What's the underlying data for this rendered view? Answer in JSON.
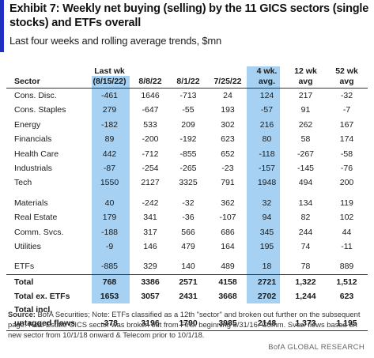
{
  "header": {
    "title": "Exhibit 7: Weekly net buying (selling) by the 11 GICS sectors (single stocks) and ETFs overall",
    "subtitle": "Last four weeks and rolling average trends, $mn"
  },
  "table": {
    "col_top": [
      "",
      "Last wk",
      "",
      "",
      "",
      "4 wk.",
      "12 wk",
      "52 wk"
    ],
    "col_bottom": [
      "Sector",
      "(8/15/22)",
      "8/8/22",
      "8/1/22",
      "7/25/22",
      "avg.",
      "avg",
      "avg"
    ],
    "rows": [
      {
        "sector": "Cons. Disc.",
        "values": [
          "-461",
          "1646",
          "-713",
          "24",
          "124",
          "217",
          "-32"
        ]
      },
      {
        "sector": "Cons. Staples",
        "values": [
          "279",
          "-647",
          "-55",
          "193",
          "-57",
          "91",
          "-7"
        ]
      },
      {
        "sector": "Energy",
        "values": [
          "-182",
          "533",
          "209",
          "302",
          "216",
          "262",
          "167"
        ]
      },
      {
        "sector": "Financials",
        "values": [
          "89",
          "-200",
          "-192",
          "623",
          "80",
          "58",
          "174"
        ]
      },
      {
        "sector": "Health Care",
        "values": [
          "442",
          "-712",
          "-855",
          "652",
          "-118",
          "-267",
          "-58"
        ]
      },
      {
        "sector": "Industrials",
        "values": [
          "-87",
          "-254",
          "-265",
          "-23",
          "-157",
          "-145",
          "-76"
        ]
      },
      {
        "sector": "Tech",
        "values": [
          "1550",
          "2127",
          "3325",
          "791",
          "1948",
          "494",
          "200"
        ]
      },
      {
        "sector": "Materials",
        "values": [
          "40",
          "-242",
          "-32",
          "362",
          "32",
          "134",
          "119"
        ]
      },
      {
        "sector": "Real Estate",
        "values": [
          "179",
          "341",
          "-36",
          "-107",
          "94",
          "82",
          "102"
        ]
      },
      {
        "sector": "Comm. Svcs.",
        "values": [
          "-188",
          "317",
          "566",
          "686",
          "345",
          "244",
          "44"
        ]
      },
      {
        "sector": "Utilities",
        "values": [
          "-9",
          "146",
          "479",
          "164",
          "195",
          "74",
          "-11"
        ]
      },
      {
        "sector": "ETFs",
        "values": [
          "-885",
          "329",
          "140",
          "489",
          "18",
          "78",
          "889"
        ]
      }
    ],
    "totals": [
      {
        "label": "Total",
        "values": [
          "768",
          "3386",
          "2571",
          "4158",
          "2721",
          "1,322",
          "1,512"
        ]
      },
      {
        "label": "Total  ex. ETFs",
        "values": [
          "1653",
          "3057",
          "2431",
          "3668",
          "2702",
          "1,244",
          "623"
        ]
      }
    ],
    "untagged": {
      "label_line1": "Total  incl.",
      "label_line2": "untagged  flows",
      "values": [
        "-378",
        "3196",
        "1790",
        "3985",
        "2148",
        "1,373",
        "1,195"
      ]
    }
  },
  "footer": {
    "source_label": "Source:",
    "source_text": " BofA Securities; Note: ETFs classified as a 12th \"sector\" and broken out further on the subsequent  page. Real Estate GICS sector was broken out from Fins. beginning 8/31/16. Comm. Svcs. flows based on new sector from 10/1/18 onward & Telecom prior to 10/1/18.",
    "credit": "BofA GLOBAL RESEARCH"
  },
  "colors": {
    "accent": "#1f2fbf",
    "highlight": "#a6d1f2"
  }
}
